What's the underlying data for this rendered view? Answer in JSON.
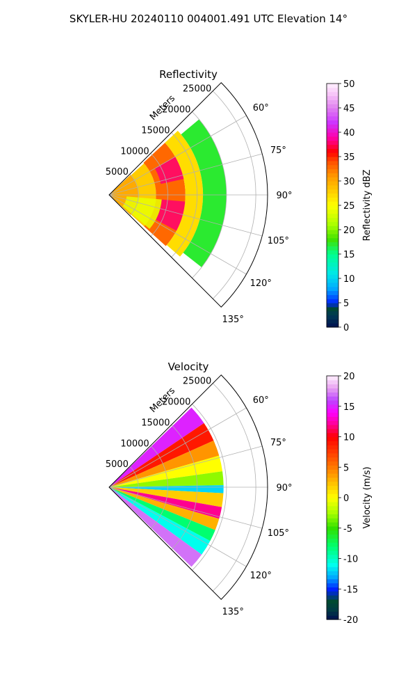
{
  "figure": {
    "title": "SKYLER-HU  20240110  004001.491 UTC Elevation 14°"
  },
  "chart_data": [
    {
      "type": "heatmap",
      "subtype": "polar-sector",
      "title": "Reflectivity",
      "range_label": "Meters",
      "range_ticks": [
        5000,
        10000,
        15000,
        20000,
        25000
      ],
      "rlim": [
        0,
        27000
      ],
      "theta_ticks_deg": [
        60,
        75,
        90,
        105,
        120,
        135
      ],
      "theta_lim_deg": [
        45,
        135
      ],
      "grid": true,
      "colorbar": {
        "label": "Reflectivity dBZ",
        "ticks": [
          0,
          5,
          10,
          15,
          20,
          25,
          30,
          35,
          40,
          45,
          50
        ],
        "range": [
          0,
          50
        ]
      },
      "bands": [
        {
          "range": [
            0,
            5000
          ],
          "theta": [
            47,
            133
          ],
          "value": 30
        },
        {
          "range": [
            5000,
            8000
          ],
          "theta": [
            48,
            132
          ],
          "value": 28
        },
        {
          "range": [
            8000,
            13000
          ],
          "theta": [
            47,
            132
          ],
          "value": 33
        },
        {
          "range": [
            13000,
            16000
          ],
          "theta": [
            47,
            131
          ],
          "value": 27
        },
        {
          "range": [
            16000,
            20000
          ],
          "theta": [
            50,
            128
          ],
          "value": 17
        }
      ],
      "features": [
        {
          "range": [
            9000,
            13000
          ],
          "theta": [
            60,
            78
          ],
          "value": 38
        },
        {
          "range": [
            9000,
            13000
          ],
          "theta": [
            95,
            118
          ],
          "value": 38
        },
        {
          "range": [
            3000,
            9000
          ],
          "theta": [
            95,
            130
          ],
          "value": 24
        }
      ]
    },
    {
      "type": "heatmap",
      "subtype": "polar-sector",
      "title": "Velocity",
      "range_label": "Meters",
      "range_ticks": [
        5000,
        10000,
        15000,
        20000,
        25000
      ],
      "rlim": [
        0,
        27000
      ],
      "theta_ticks_deg": [
        60,
        75,
        90,
        105,
        120,
        135
      ],
      "theta_lim_deg": [
        45,
        135
      ],
      "grid": true,
      "colorbar": {
        "label": "Velocity (m/s)",
        "ticks": [
          -20,
          -15,
          -10,
          -5,
          0,
          5,
          10,
          15,
          20
        ],
        "range": [
          -20,
          20
        ]
      },
      "radial_profile": [
        {
          "theta": [
            46,
            56
          ],
          "value": 15
        },
        {
          "theta": [
            56,
            66
          ],
          "value": 9
        },
        {
          "theta": [
            66,
            74
          ],
          "value": 4
        },
        {
          "theta": [
            74,
            82
          ],
          "value": 0
        },
        {
          "theta": [
            82,
            89
          ],
          "value": -3
        },
        {
          "theta": [
            89,
            93
          ],
          "value": -12
        },
        {
          "theta": [
            93,
            100
          ],
          "value": 2
        },
        {
          "theta": [
            100,
            106
          ],
          "value": 12
        },
        {
          "theta": [
            106,
            112
          ],
          "value": 3
        },
        {
          "theta": [
            112,
            118
          ],
          "value": -8
        },
        {
          "theta": [
            118,
            126
          ],
          "value": -11
        },
        {
          "theta": [
            126,
            134
          ],
          "value": 17
        }
      ],
      "rmax_m": 19500
    }
  ]
}
